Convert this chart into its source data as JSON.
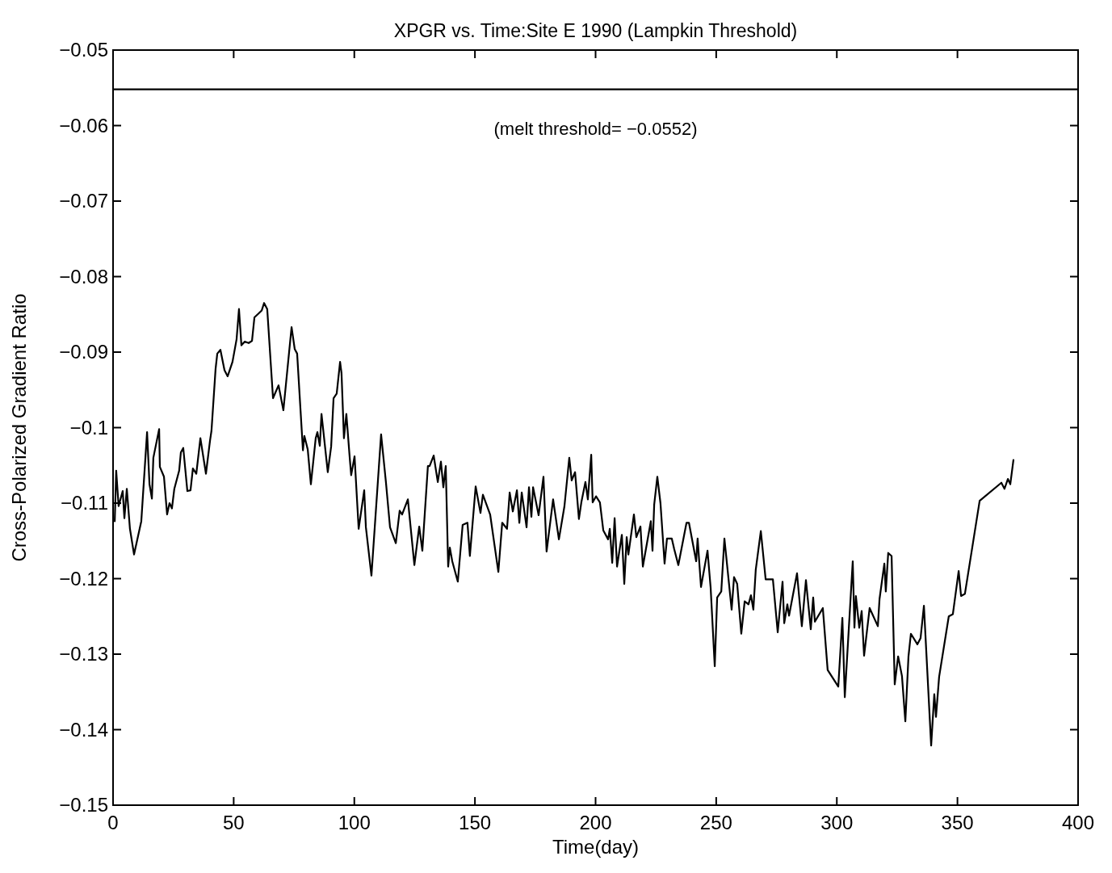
{
  "chart_data": {
    "type": "line",
    "title": "XPGR vs. Time:Site E 1990 (Lampkin Threshold)",
    "xlabel": "Time(day)",
    "ylabel": "Cross-Polarized Gradient Ratio",
    "xlim": [
      0,
      400
    ],
    "xticks": [
      0,
      50,
      100,
      150,
      200,
      250,
      300,
      350,
      400
    ],
    "ylim": [
      -0.15,
      -0.05
    ],
    "yticks": [
      -0.15,
      -0.14,
      -0.13,
      -0.12,
      -0.11,
      -0.1,
      -0.09,
      -0.08,
      -0.07,
      -0.06,
      -0.05
    ],
    "grid": false,
    "marker": "none",
    "line_style": "solid",
    "ref_lines": [
      {
        "axis": "y",
        "value": -0.0552,
        "label": "(melt threshold= −0.0552)",
        "color": "#000000",
        "line_style": "solid"
      }
    ],
    "series": [
      {
        "color": "#000000",
        "x": [
          0.7,
          1.3,
          2.3,
          4.0,
          4.7,
          5.7,
          7.0,
          8.7,
          11.7,
          14.1,
          15.1,
          16.1,
          16.7,
          19.1,
          19.4,
          21.1,
          22.4,
          23.4,
          24.4,
          25.4,
          27.4,
          28.1,
          29.1,
          30.8,
          32.1,
          33.1,
          34.5,
          36.2,
          38.5,
          40.2,
          40.8,
          42.5,
          43.2,
          44.5,
          46.2,
          47.5,
          49.5,
          51.2,
          52.2,
          53.2,
          54.6,
          56.2,
          57.6,
          58.6,
          60.3,
          61.6,
          62.6,
          63.9,
          66.3,
          68.6,
          70.6,
          73.0,
          74.0,
          75.3,
          76.3,
          78.7,
          79.3,
          80.7,
          82.0,
          84.0,
          84.7,
          85.7,
          86.4,
          89.0,
          90.4,
          91.4,
          92.7,
          94.1,
          94.7,
          95.7,
          96.7,
          98.1,
          98.7,
          100.1,
          101.8,
          104.1,
          104.8,
          107.1,
          111.1,
          113.1,
          114.8,
          117.2,
          118.8,
          119.8,
          122.2,
          124.9,
          126.9,
          128.2,
          130.5,
          131.2,
          132.9,
          134.6,
          135.9,
          136.9,
          137.9,
          138.9,
          139.6,
          140.6,
          142.9,
          144.9,
          146.9,
          147.9,
          150.3,
          152.3,
          153.3,
          156.3,
          159.7,
          161.3,
          163.3,
          164.4,
          165.7,
          167.4,
          168.4,
          169.4,
          171.4,
          172.4,
          173.4,
          174.1,
          176.4,
          178.4,
          179.7,
          182.4,
          184.8,
          187.1,
          189.1,
          190.1,
          191.5,
          193.1,
          194.1,
          195.8,
          196.8,
          198.2,
          198.8,
          200.2,
          201.8,
          203.2,
          205.2,
          205.9,
          206.9,
          207.9,
          208.9,
          210.9,
          211.9,
          212.9,
          213.6,
          215.9,
          216.9,
          218.6,
          219.6,
          222.9,
          223.6,
          224.3,
          225.6,
          226.9,
          228.6,
          229.6,
          231.6,
          232.6,
          234.3,
          237.7,
          238.7,
          241.7,
          242.3,
          243.7,
          246.4,
          247.7,
          249.4,
          250.4,
          252.1,
          253.4,
          256.4,
          257.4,
          258.7,
          260.4,
          261.8,
          263.4,
          264.4,
          265.4,
          266.4,
          268.5,
          270.5,
          273.5,
          275.5,
          277.5,
          278.2,
          279.5,
          280.2,
          283.5,
          285.5,
          287.2,
          289.2,
          290.2,
          290.9,
          294.2,
          296.2,
          300.6,
          302.3,
          303.3,
          306.6,
          307.3,
          307.9,
          309.3,
          310.3,
          311.3,
          313.6,
          317.0,
          317.7,
          319.7,
          320.3,
          321.3,
          322.7,
          324.0,
          325.4,
          327.0,
          328.4,
          329.7,
          330.7,
          333.4,
          334.7,
          336.1,
          339.1,
          340.4,
          341.1,
          342.4,
          346.4,
          348.1,
          350.5,
          351.5,
          353.1,
          359.2,
          368.2,
          369.5,
          370.9,
          371.9,
          373.2
        ],
        "values": [
          -0.1124,
          -0.1057,
          -0.1104,
          -0.1084,
          -0.112,
          -0.1081,
          -0.1134,
          -0.1168,
          -0.1124,
          -0.1006,
          -0.1075,
          -0.1094,
          -0.104,
          -0.1002,
          -0.1052,
          -0.1065,
          -0.1115,
          -0.11,
          -0.1107,
          -0.1081,
          -0.1057,
          -0.1033,
          -0.1027,
          -0.1084,
          -0.1083,
          -0.1054,
          -0.1061,
          -0.1014,
          -0.1061,
          -0.1017,
          -0.1004,
          -0.0922,
          -0.0902,
          -0.0897,
          -0.0924,
          -0.0932,
          -0.0913,
          -0.0883,
          -0.0843,
          -0.0891,
          -0.0886,
          -0.0888,
          -0.0885,
          -0.0854,
          -0.0849,
          -0.0845,
          -0.0835,
          -0.0843,
          -0.0961,
          -0.0944,
          -0.0977,
          -0.0899,
          -0.0867,
          -0.0896,
          -0.0902,
          -0.103,
          -0.1011,
          -0.1029,
          -0.1075,
          -0.1014,
          -0.1006,
          -0.1024,
          -0.0982,
          -0.1059,
          -0.1025,
          -0.0961,
          -0.0955,
          -0.0913,
          -0.0928,
          -0.1014,
          -0.0982,
          -0.104,
          -0.1063,
          -0.1038,
          -0.1134,
          -0.1083,
          -0.1132,
          -0.1196,
          -0.1009,
          -0.1072,
          -0.1132,
          -0.1153,
          -0.111,
          -0.1115,
          -0.1095,
          -0.1182,
          -0.1131,
          -0.1163,
          -0.1051,
          -0.1051,
          -0.1037,
          -0.1072,
          -0.1045,
          -0.1079,
          -0.1051,
          -0.1184,
          -0.1159,
          -0.1177,
          -0.1204,
          -0.1129,
          -0.1126,
          -0.117,
          -0.1078,
          -0.1113,
          -0.1089,
          -0.1115,
          -0.1191,
          -0.1126,
          -0.1134,
          -0.1086,
          -0.1111,
          -0.1083,
          -0.1126,
          -0.1086,
          -0.1132,
          -0.1079,
          -0.1118,
          -0.1079,
          -0.1116,
          -0.1065,
          -0.1164,
          -0.1095,
          -0.1148,
          -0.1104,
          -0.104,
          -0.107,
          -0.1059,
          -0.1121,
          -0.1099,
          -0.1072,
          -0.1095,
          -0.1036,
          -0.1099,
          -0.1091,
          -0.1099,
          -0.1136,
          -0.1148,
          -0.1134,
          -0.1179,
          -0.112,
          -0.1184,
          -0.1142,
          -0.1207,
          -0.1145,
          -0.1168,
          -0.1115,
          -0.1145,
          -0.1131,
          -0.1184,
          -0.1124,
          -0.1163,
          -0.1102,
          -0.1065,
          -0.11,
          -0.118,
          -0.1147,
          -0.1147,
          -0.1161,
          -0.1182,
          -0.1126,
          -0.1126,
          -0.1177,
          -0.1147,
          -0.1211,
          -0.1163,
          -0.1212,
          -0.1316,
          -0.1225,
          -0.1217,
          -0.1147,
          -0.1241,
          -0.1198,
          -0.1207,
          -0.1273,
          -0.123,
          -0.1234,
          -0.1222,
          -0.1241,
          -0.1188,
          -0.1137,
          -0.1201,
          -0.1201,
          -0.1271,
          -0.1204,
          -0.1259,
          -0.1234,
          -0.1249,
          -0.1193,
          -0.1263,
          -0.1202,
          -0.1267,
          -0.1225,
          -0.1257,
          -0.1239,
          -0.1321,
          -0.1343,
          -0.1252,
          -0.1357,
          -0.1177,
          -0.1265,
          -0.1223,
          -0.1265,
          -0.1243,
          -0.1302,
          -0.1239,
          -0.1263,
          -0.1227,
          -0.118,
          -0.1217,
          -0.1166,
          -0.117,
          -0.134,
          -0.1303,
          -0.1329,
          -0.1389,
          -0.1303,
          -0.1273,
          -0.1287,
          -0.1279,
          -0.1236,
          -0.1421,
          -0.1353,
          -0.1383,
          -0.133,
          -0.125,
          -0.1247,
          -0.119,
          -0.1223,
          -0.122,
          -0.1097,
          -0.1073,
          -0.1081,
          -0.1068,
          -0.1075,
          -0.1043
        ]
      }
    ]
  }
}
